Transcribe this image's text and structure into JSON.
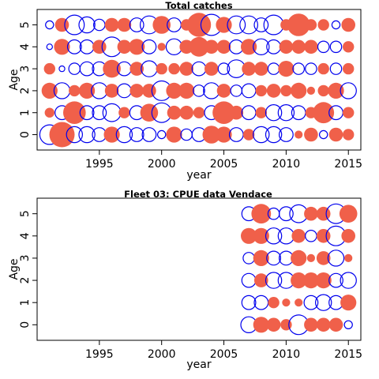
{
  "chart_data": [
    {
      "type": "scatter",
      "title": "Total catches",
      "xlabel": "year",
      "ylabel": "Age",
      "xlim": [
        1990,
        2016
      ],
      "ylim": [
        -0.7,
        5.7
      ],
      "x_ticks": [
        "1995",
        "2000",
        "2005",
        "2010",
        "2015"
      ],
      "y_ticks": [
        "0",
        "1",
        "2",
        "3",
        "4",
        "5"
      ],
      "positive_color": "#f0604a",
      "negative_color": "#0000ee",
      "years": [
        1991,
        1992,
        1993,
        1994,
        1995,
        1996,
        1997,
        1998,
        1999,
        2000,
        2001,
        2002,
        2003,
        2004,
        2005,
        2006,
        2007,
        2008,
        2009,
        2010,
        2011,
        2012,
        2013,
        2014,
        2015
      ],
      "residuals": {
        "0": [
          -0.6,
          1.0,
          -0.4,
          -0.4,
          -0.3,
          0.4,
          -0.4,
          -0.3,
          -0.3,
          -0.1,
          0.4,
          -0.2,
          -0.3,
          0.5,
          0.4,
          -0.3,
          0.2,
          -0.4,
          -0.4,
          -0.3,
          0.1,
          0.3,
          -0.1,
          0.3,
          0.2
        ],
        "1": [
          0.15,
          -0.3,
          0.8,
          -0.3,
          -0.3,
          -0.5,
          0.2,
          -0.3,
          0.5,
          -0.6,
          0.3,
          0.3,
          0.2,
          -0.3,
          0.8,
          0.3,
          -0.3,
          0.2,
          -0.4,
          -0.4,
          -0.3,
          0.2,
          0.7,
          -0.3,
          0.2
        ],
        "2": [
          0.4,
          -0.4,
          0.2,
          0.4,
          -0.4,
          0.3,
          -0.3,
          0.3,
          0.3,
          -0.6,
          0.4,
          0.4,
          -0.2,
          -0.4,
          0.3,
          -0.2,
          -0.3,
          0.2,
          0.3,
          0.2,
          0.4,
          0.1,
          0.2,
          0.4,
          -0.4
        ],
        "3": [
          0.2,
          -0.05,
          -0.2,
          -0.3,
          -0.3,
          0.5,
          -0.3,
          0.3,
          -0.4,
          0.2,
          0.2,
          0.3,
          -0.3,
          0.3,
          -0.2,
          -0.5,
          0.3,
          0.3,
          -0.2,
          0.4,
          -0.2,
          -0.2,
          0.2,
          -0.2,
          0.2
        ],
        "4": [
          -0.05,
          0.4,
          -0.3,
          -0.3,
          0.3,
          -0.6,
          0.3,
          0.4,
          -0.3,
          0.1,
          -0.4,
          0.3,
          0.6,
          0.3,
          0.3,
          -0.3,
          0.4,
          -0.4,
          -0.3,
          0.3,
          0.3,
          0.3,
          -0.2,
          -0.2,
          0.2
        ],
        "5": [
          -0.1,
          0.3,
          -0.6,
          -0.4,
          -0.2,
          0.3,
          0.3,
          -0.3,
          -0.5,
          0.5,
          -0.3,
          0.2,
          0.9,
          -0.7,
          0.4,
          -0.5,
          -0.5,
          -0.3,
          -0.6,
          0.2,
          0.8,
          0.2,
          0.2,
          -0.1,
          0.3
        ]
      }
    },
    {
      "type": "scatter",
      "title": "Fleet 03:  CPUE data Vendace",
      "xlabel": "year",
      "ylabel": "Age",
      "xlim": [
        1990,
        2016
      ],
      "ylim": [
        -0.7,
        5.7
      ],
      "x_ticks": [
        "1995",
        "2000",
        "2005",
        "2010",
        "2015"
      ],
      "y_ticks": [
        "0",
        "1",
        "2",
        "3",
        "4",
        "5"
      ],
      "positive_color": "#f0604a",
      "negative_color": "#0000ee",
      "years": [
        2007,
        2008,
        2009,
        2010,
        2011,
        2012,
        2013,
        2014,
        2015
      ],
      "residuals": {
        "0": [
          -0.4,
          0.4,
          0.3,
          0.2,
          -0.6,
          0.3,
          0.3,
          0.3,
          -0.1
        ],
        "1": [
          -0.3,
          -0.3,
          0.2,
          0.1,
          0.1,
          -0.3,
          -0.4,
          -0.3,
          0.4
        ],
        "2": [
          -0.3,
          0.3,
          -0.4,
          -0.4,
          0.4,
          0.4,
          0.4,
          -0.3,
          -0.4
        ],
        "3": [
          -0.2,
          0.4,
          -0.3,
          -0.3,
          0.4,
          0.1,
          0.3,
          -0.4,
          0.1
        ],
        "4": [
          0.4,
          0.4,
          -0.4,
          -0.4,
          0.3,
          -0.2,
          0.3,
          -0.6,
          0.3
        ],
        "5": [
          -0.3,
          0.6,
          -0.2,
          -0.3,
          -0.5,
          0.3,
          0.3,
          -0.6,
          0.5
        ]
      }
    }
  ]
}
